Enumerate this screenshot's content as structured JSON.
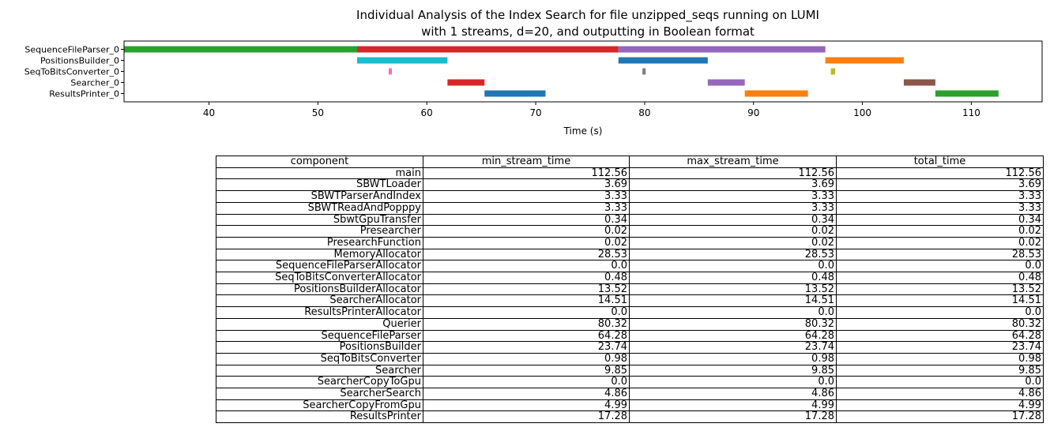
{
  "chart_data": [
    {
      "type": "gantt",
      "title": "Individual Analysis of the Index Search for file unzipped_seqs running on LUMI",
      "subtitle": "with 1 streams, d=20, and outputting in Boolean format",
      "xlabel": "Time (s)",
      "xlim": [
        32.2,
        116.5
      ],
      "xticks": [
        40,
        50,
        60,
        70,
        80,
        90,
        100,
        110
      ],
      "rows": [
        "SequenceFileParser_0",
        "PositionsBuilder_0",
        "SeqToBitsConverter_0",
        "Searcher_0",
        "ResultsPrinter_0"
      ],
      "bars": [
        {
          "row": 0,
          "start": 32.2,
          "end": 53.6,
          "color": "#2ca02c"
        },
        {
          "row": 0,
          "start": 53.6,
          "end": 77.6,
          "color": "#d62728"
        },
        {
          "row": 0,
          "start": 77.6,
          "end": 96.6,
          "color": "#9467bd"
        },
        {
          "row": 1,
          "start": 53.6,
          "end": 61.9,
          "color": "#17becf"
        },
        {
          "row": 1,
          "start": 77.6,
          "end": 85.8,
          "color": "#1f77b4"
        },
        {
          "row": 1,
          "start": 96.6,
          "end": 103.8,
          "color": "#ff7f0e"
        },
        {
          "row": 2,
          "start": 56.5,
          "end": 56.8,
          "color": "#e377c2"
        },
        {
          "row": 2,
          "start": 79.8,
          "end": 80.1,
          "color": "#7f7f7f"
        },
        {
          "row": 2,
          "start": 97.1,
          "end": 97.5,
          "color": "#bcbd22"
        },
        {
          "row": 3,
          "start": 61.9,
          "end": 65.3,
          "color": "#d62728"
        },
        {
          "row": 3,
          "start": 85.8,
          "end": 89.2,
          "color": "#9467bd"
        },
        {
          "row": 3,
          "start": 103.8,
          "end": 106.7,
          "color": "#8c564b"
        },
        {
          "row": 4,
          "start": 65.3,
          "end": 70.9,
          "color": "#1f77b4"
        },
        {
          "row": 4,
          "start": 89.2,
          "end": 95.0,
          "color": "#ff7f0e"
        },
        {
          "row": 4,
          "start": 106.7,
          "end": 112.5,
          "color": "#2ca02c"
        }
      ]
    },
    {
      "type": "table",
      "columns": [
        "component",
        "min_stream_time",
        "max_stream_time",
        "total_time"
      ],
      "rows": [
        [
          "main",
          "112.56",
          "112.56",
          "112.56"
        ],
        [
          "SBWTLoader",
          "3.69",
          "3.69",
          "3.69"
        ],
        [
          "SBWTParserAndIndex",
          "3.33",
          "3.33",
          "3.33"
        ],
        [
          "SBWTReadAndPopppy",
          "3.33",
          "3.33",
          "3.33"
        ],
        [
          "SbwtGpuTransfer",
          "0.34",
          "0.34",
          "0.34"
        ],
        [
          "Presearcher",
          "0.02",
          "0.02",
          "0.02"
        ],
        [
          "PresearchFunction",
          "0.02",
          "0.02",
          "0.02"
        ],
        [
          "MemoryAllocator",
          "28.53",
          "28.53",
          "28.53"
        ],
        [
          "SequenceFileParserAllocator",
          "0.0",
          "0.0",
          "0.0"
        ],
        [
          "SeqToBitsConverterAllocator",
          "0.48",
          "0.48",
          "0.48"
        ],
        [
          "PositionsBuilderAllocator",
          "13.52",
          "13.52",
          "13.52"
        ],
        [
          "SearcherAllocator",
          "14.51",
          "14.51",
          "14.51"
        ],
        [
          "ResultsPrinterAllocator",
          "0.0",
          "0.0",
          "0.0"
        ],
        [
          "Querier",
          "80.32",
          "80.32",
          "80.32"
        ],
        [
          "SequenceFileParser",
          "64.28",
          "64.28",
          "64.28"
        ],
        [
          "PositionsBuilder",
          "23.74",
          "23.74",
          "23.74"
        ],
        [
          "SeqToBitsConverter",
          "0.98",
          "0.98",
          "0.98"
        ],
        [
          "Searcher",
          "9.85",
          "9.85",
          "9.85"
        ],
        [
          "SearcherCopyToGpu",
          "0.0",
          "0.0",
          "0.0"
        ],
        [
          "SearcherSearch",
          "4.86",
          "4.86",
          "4.86"
        ],
        [
          "SearcherCopyFromGpu",
          "4.99",
          "4.99",
          "4.99"
        ],
        [
          "ResultsPrinter",
          "17.28",
          "17.28",
          "17.28"
        ]
      ]
    }
  ]
}
